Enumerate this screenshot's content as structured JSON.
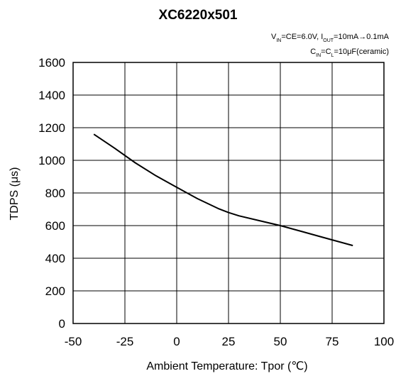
{
  "chart_data": {
    "type": "line",
    "title": "XC6220x501",
    "conditions": [
      {
        "parts": [
          {
            "t": "V"
          },
          {
            "t": "IN",
            "sub": true
          },
          {
            "t": "=CE=6.0V, I"
          },
          {
            "t": "OUT",
            "sub": true
          },
          {
            "t": "=10mA→0.1mA"
          }
        ]
      },
      {
        "parts": [
          {
            "t": "C"
          },
          {
            "t": "IN",
            "sub": true
          },
          {
            "t": "=C"
          },
          {
            "t": "L",
            "sub": true
          },
          {
            "t": "=10μF(ceramic)"
          }
        ]
      }
    ],
    "xlabel": "Ambient Temperature: Tpor (℃)",
    "ylabel": "TDPS (μs)",
    "xlim": [
      -50,
      100
    ],
    "ylim": [
      0,
      1600
    ],
    "xticks": [
      -50,
      -25,
      0,
      25,
      50,
      75,
      100
    ],
    "yticks": [
      0,
      200,
      400,
      600,
      800,
      1000,
      1200,
      1400,
      1600
    ],
    "grid": true,
    "series": [
      {
        "x": [
          -40,
          -30,
          -20,
          -10,
          0,
          10,
          20,
          25,
          30,
          40,
          50,
          60,
          70,
          85
        ],
        "y": [
          1160,
          1075,
          985,
          905,
          835,
          765,
          705,
          680,
          660,
          630,
          600,
          565,
          530,
          478
        ]
      }
    ]
  }
}
